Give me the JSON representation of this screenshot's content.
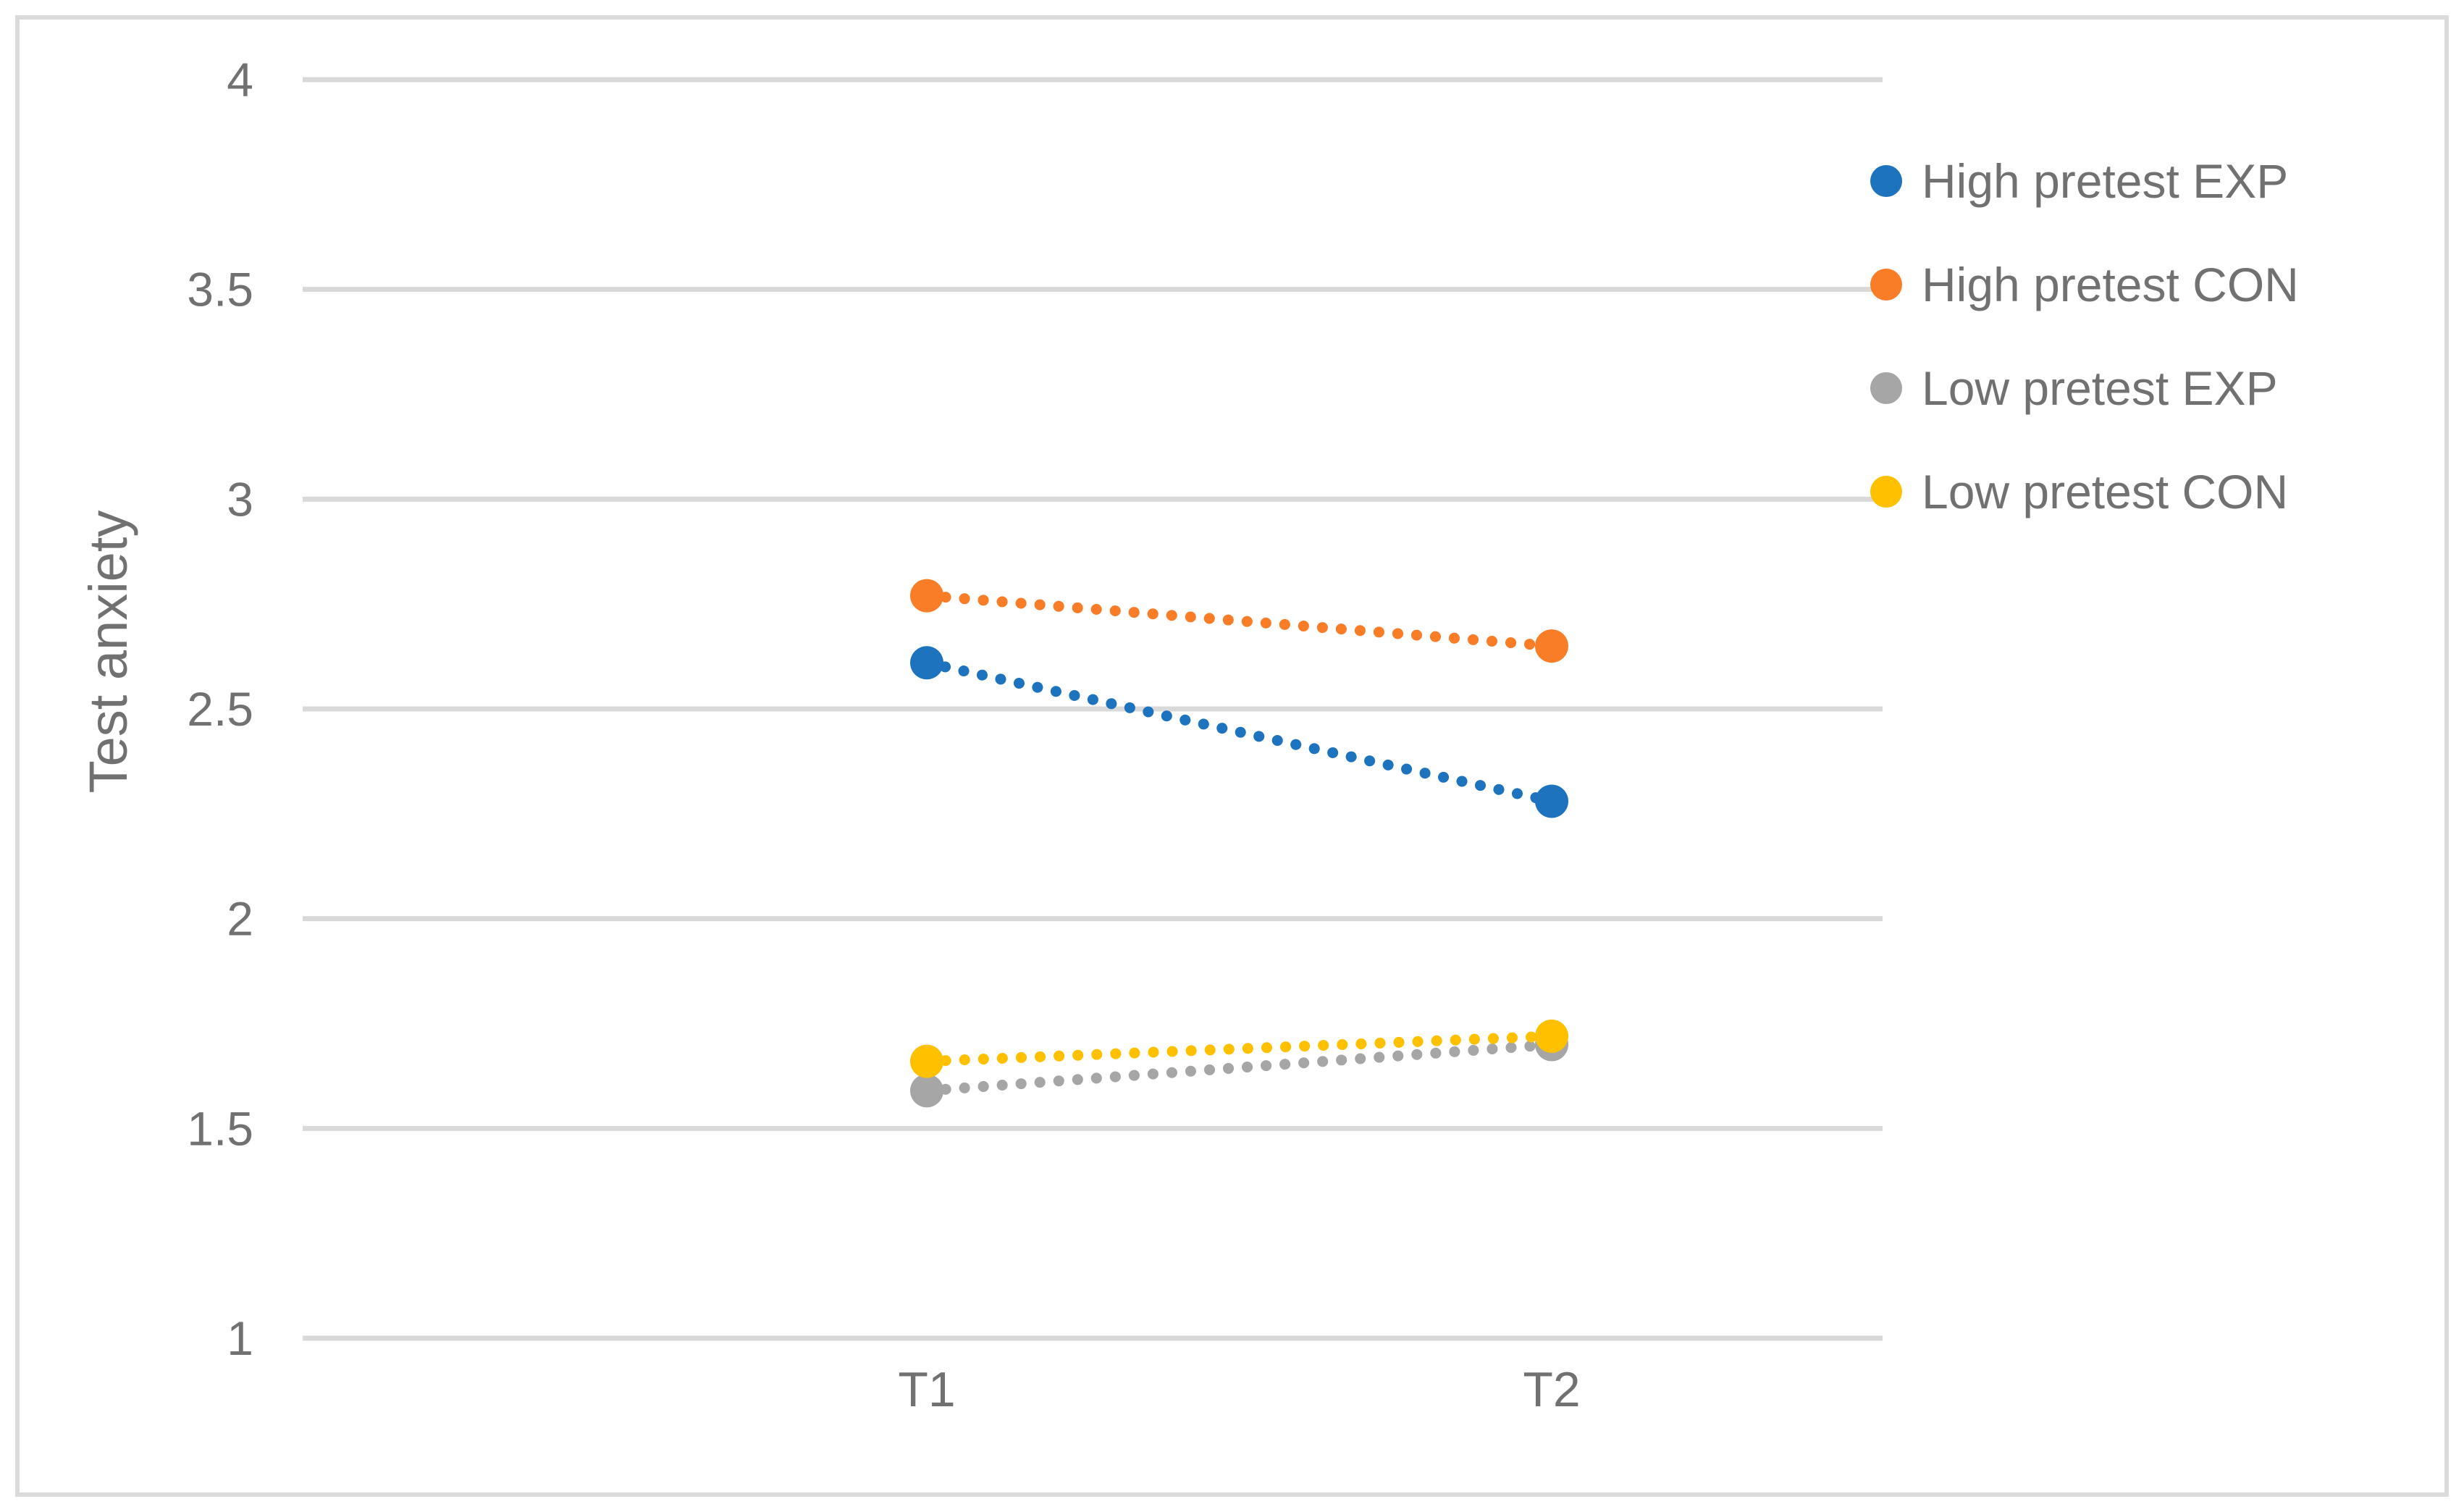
{
  "chart_data": {
    "type": "line",
    "title": "",
    "xlabel": "",
    "ylabel": "Test anxiety",
    "categories": [
      "T1",
      "T2"
    ],
    "series": [
      {
        "name": "High pretest EXP",
        "color": "#1e73be",
        "values": [
          2.61,
          2.28
        ]
      },
      {
        "name": "High pretest CON",
        "color": "#f97d27",
        "values": [
          2.77,
          2.65
        ]
      },
      {
        "name": "Low pretest EXP",
        "color": "#a6a6a6",
        "values": [
          1.59,
          1.7
        ]
      },
      {
        "name": "Low pretest CON",
        "color": "#ffc000",
        "values": [
          1.66,
          1.72
        ]
      }
    ],
    "ylim": [
      1,
      4
    ],
    "ytick_step": 0.5,
    "yticks": [
      "4",
      "3.5",
      "3",
      "2.5",
      "2",
      "1.5",
      "1"
    ],
    "line_style": "dotted",
    "marker": "circle",
    "grid": "horizontal",
    "gridline_color": "#d9d9d9",
    "text_color": "#717171",
    "legend_position": "right"
  }
}
